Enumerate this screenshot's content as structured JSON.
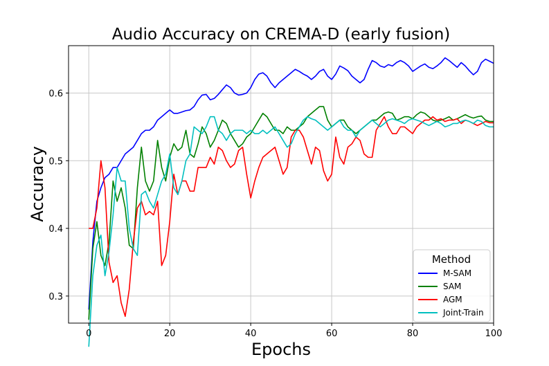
{
  "chart_data": {
    "type": "line",
    "title": "Audio Accuracy on CREMA-D (early fusion)",
    "xlabel": "Epochs",
    "ylabel": "Accuracy",
    "xlim": [
      -5,
      100
    ],
    "ylim": [
      0.26,
      0.67
    ],
    "xticks": [
      0,
      20,
      40,
      60,
      80,
      100
    ],
    "yticks": [
      0.3,
      0.4,
      0.5,
      0.6
    ],
    "grid": true,
    "legend": {
      "title": "Method",
      "placement": "lower-right"
    },
    "series": [
      {
        "name": "M-SAM",
        "color": "#0000ff",
        "values": [
          0.28,
          0.38,
          0.44,
          0.46,
          0.475,
          0.48,
          0.49,
          0.49,
          0.5,
          0.51,
          0.515,
          0.52,
          0.53,
          0.54,
          0.545,
          0.545,
          0.55,
          0.56,
          0.565,
          0.57,
          0.575,
          0.57,
          0.57,
          0.572,
          0.574,
          0.575,
          0.58,
          0.59,
          0.597,
          0.598,
          0.59,
          0.592,
          0.598,
          0.605,
          0.612,
          0.608,
          0.6,
          0.597,
          0.598,
          0.6,
          0.608,
          0.62,
          0.628,
          0.63,
          0.625,
          0.615,
          0.608,
          0.615,
          0.62,
          0.625,
          0.63,
          0.635,
          0.632,
          0.628,
          0.625,
          0.62,
          0.625,
          0.632,
          0.635,
          0.625,
          0.62,
          0.628,
          0.64,
          0.637,
          0.633,
          0.625,
          0.62,
          0.615,
          0.62,
          0.635,
          0.648,
          0.645,
          0.64,
          0.638,
          0.642,
          0.64,
          0.645,
          0.648,
          0.645,
          0.64,
          0.632,
          0.636,
          0.64,
          0.643,
          0.638,
          0.636,
          0.64,
          0.645,
          0.652,
          0.648,
          0.643,
          0.638,
          0.645,
          0.64,
          0.633,
          0.627,
          0.632,
          0.645,
          0.65,
          0.647,
          0.644
        ]
      },
      {
        "name": "SAM",
        "color": "#008000",
        "values": [
          0.265,
          0.37,
          0.41,
          0.36,
          0.345,
          0.38,
          0.47,
          0.44,
          0.46,
          0.43,
          0.375,
          0.37,
          0.46,
          0.52,
          0.47,
          0.455,
          0.47,
          0.53,
          0.49,
          0.47,
          0.505,
          0.525,
          0.515,
          0.52,
          0.545,
          0.51,
          0.505,
          0.525,
          0.55,
          0.54,
          0.52,
          0.53,
          0.545,
          0.56,
          0.555,
          0.54,
          0.53,
          0.52,
          0.525,
          0.535,
          0.54,
          0.55,
          0.56,
          0.57,
          0.565,
          0.555,
          0.545,
          0.545,
          0.54,
          0.55,
          0.545,
          0.545,
          0.55,
          0.555,
          0.565,
          0.57,
          0.575,
          0.58,
          0.58,
          0.56,
          0.55,
          0.555,
          0.56,
          0.56,
          0.55,
          0.545,
          0.54,
          0.545,
          0.55,
          0.555,
          0.56,
          0.56,
          0.565,
          0.57,
          0.572,
          0.57,
          0.56,
          0.562,
          0.565,
          0.565,
          0.562,
          0.568,
          0.572,
          0.57,
          0.565,
          0.56,
          0.558,
          0.56,
          0.562,
          0.565,
          0.56,
          0.562,
          0.565,
          0.568,
          0.565,
          0.563,
          0.565,
          0.566,
          0.56,
          0.558,
          0.558
        ]
      },
      {
        "name": "AGM",
        "color": "#ff0000",
        "values": [
          0.4,
          0.4,
          0.43,
          0.5,
          0.46,
          0.35,
          0.32,
          0.33,
          0.29,
          0.27,
          0.31,
          0.38,
          0.43,
          0.44,
          0.42,
          0.425,
          0.42,
          0.44,
          0.345,
          0.36,
          0.41,
          0.48,
          0.45,
          0.47,
          0.47,
          0.455,
          0.455,
          0.49,
          0.49,
          0.49,
          0.505,
          0.495,
          0.52,
          0.515,
          0.5,
          0.49,
          0.495,
          0.515,
          0.52,
          0.48,
          0.445,
          0.47,
          0.49,
          0.505,
          0.51,
          0.515,
          0.52,
          0.5,
          0.48,
          0.49,
          0.535,
          0.545,
          0.545,
          0.535,
          0.515,
          0.495,
          0.52,
          0.515,
          0.485,
          0.47,
          0.48,
          0.535,
          0.505,
          0.495,
          0.52,
          0.525,
          0.535,
          0.53,
          0.51,
          0.505,
          0.505,
          0.545,
          0.555,
          0.565,
          0.55,
          0.54,
          0.54,
          0.55,
          0.55,
          0.545,
          0.54,
          0.55,
          0.555,
          0.56,
          0.56,
          0.565,
          0.56,
          0.562,
          0.558,
          0.56,
          0.56,
          0.562,
          0.555,
          0.56,
          0.558,
          0.555,
          0.552,
          0.555,
          0.558,
          0.556,
          0.556
        ]
      },
      {
        "name": "Joint-Train",
        "color": "#00bfbf",
        "values": [
          0.225,
          0.33,
          0.375,
          0.39,
          0.33,
          0.365,
          0.42,
          0.49,
          0.47,
          0.47,
          0.4,
          0.37,
          0.36,
          0.45,
          0.455,
          0.44,
          0.43,
          0.45,
          0.47,
          0.48,
          0.51,
          0.46,
          0.45,
          0.47,
          0.5,
          0.51,
          0.55,
          0.545,
          0.54,
          0.55,
          0.565,
          0.565,
          0.545,
          0.54,
          0.53,
          0.54,
          0.545,
          0.545,
          0.545,
          0.54,
          0.545,
          0.54,
          0.54,
          0.545,
          0.54,
          0.545,
          0.55,
          0.54,
          0.53,
          0.52,
          0.525,
          0.54,
          0.55,
          0.56,
          0.565,
          0.562,
          0.56,
          0.555,
          0.55,
          0.545,
          0.55,
          0.555,
          0.56,
          0.55,
          0.545,
          0.545,
          0.535,
          0.545,
          0.55,
          0.555,
          0.56,
          0.555,
          0.55,
          0.555,
          0.56,
          0.562,
          0.56,
          0.558,
          0.555,
          0.56,
          0.562,
          0.56,
          0.558,
          0.555,
          0.552,
          0.555,
          0.558,
          0.555,
          0.55,
          0.552,
          0.555,
          0.555,
          0.558,
          0.56,
          0.558,
          0.555,
          0.56,
          0.558,
          0.552,
          0.55,
          0.55
        ]
      }
    ]
  }
}
